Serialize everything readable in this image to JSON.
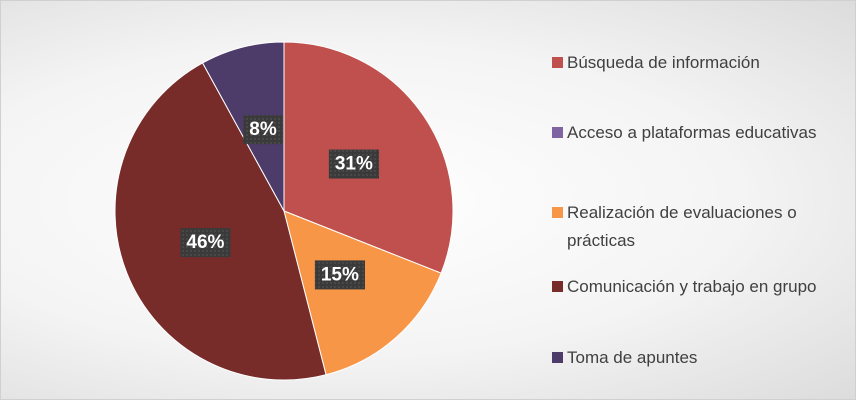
{
  "chart_data": {
    "type": "pie",
    "categories": [
      "Búsqueda de información",
      "Acceso a plataformas educativas",
      "Realización de evaluaciones o prácticas",
      "Comunicación y trabajo en grupo",
      "Toma de apuntes"
    ],
    "values": [
      31,
      0,
      15,
      46,
      8
    ],
    "value_labels": [
      "31%",
      null,
      "15%",
      "46%",
      "8%"
    ],
    "colors": [
      "#c0504d",
      "#8064a2",
      "#f79646",
      "#772c2a",
      "#4d3b6a"
    ],
    "legend": "right"
  }
}
